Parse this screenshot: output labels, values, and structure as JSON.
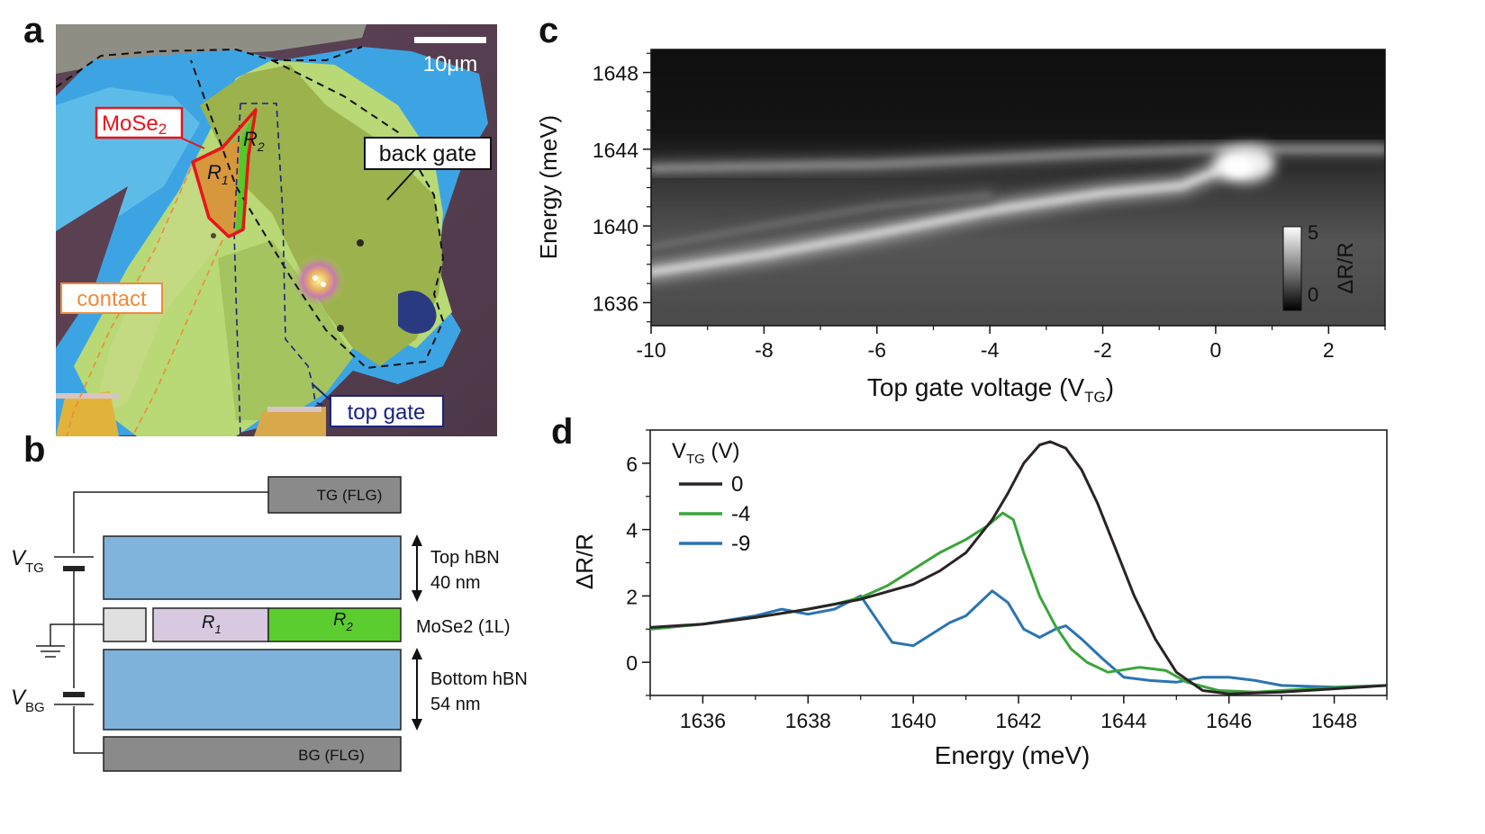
{
  "panels": {
    "a": "a",
    "b": "b",
    "c": "c",
    "d": "d"
  },
  "panel_a": {
    "scale_bar": "10μm",
    "labels": {
      "mose2": "MoSe",
      "mose2_sub": "2",
      "r1": "R",
      "r1_sub": "1",
      "r2": "R",
      "r2_sub": "2",
      "back_gate": "back gate",
      "contact": "contact",
      "top_gate": "top gate"
    }
  },
  "panel_b": {
    "tg_block": "TG (FLG)",
    "bg_block": "BG (FLG)",
    "vtg": "V",
    "vtg_sub": "TG",
    "vbg": "V",
    "vbg_sub": "BG",
    "r1": "R",
    "r1_sub": "1",
    "r2": "R",
    "r2_sub": "2",
    "top_hbn_line1": "Top hBN",
    "top_hbn_line2": "40 nm",
    "mose2_label": "MoSe2 (1L)",
    "bottom_hbn_line1": "Bottom hBN",
    "bottom_hbn_line2": "54 nm"
  },
  "chart_data": [
    {
      "type": "heatmap",
      "panel": "c",
      "title": "",
      "xlabel": "Top gate voltage (V",
      "xlabel_sub": "TG",
      "xlabel_end": ")",
      "ylabel": "Energy (meV)",
      "xlim": [
        -10,
        3
      ],
      "ylim": [
        1634.8,
        1649.2
      ],
      "xticks": [
        -10,
        -8,
        -6,
        -4,
        -2,
        0,
        2
      ],
      "yticks": [
        1636,
        1640,
        1644,
        1648
      ],
      "colorbar": {
        "label": "ΔR/R",
        "ticks": [
          0,
          5
        ],
        "range": [
          0,
          5
        ]
      },
      "features": [
        {
          "name": "main-exciton-branch",
          "points": [
            [
              -10,
              1637.6
            ],
            [
              -8,
              1638.5
            ],
            [
              -6,
              1639.6
            ],
            [
              -4,
              1640.8
            ],
            [
              -2,
              1641.7
            ],
            [
              -0.6,
              1642.1
            ],
            [
              0.3,
              1643.2
            ],
            [
              0.8,
              1643.7
            ]
          ]
        },
        {
          "name": "upper-branch",
          "points": [
            [
              -10,
              1643.0
            ],
            [
              -8,
              1643.1
            ],
            [
              -6,
              1643.2
            ],
            [
              -4,
              1643.5
            ],
            [
              -2,
              1643.8
            ],
            [
              0,
              1644.0
            ],
            [
              2,
              1644.0
            ],
            [
              3,
              1644.0
            ]
          ]
        },
        {
          "name": "lower-branch",
          "points": [
            [
              -10,
              1638.9
            ],
            [
              -8,
              1640.0
            ],
            [
              -6,
              1641.0
            ],
            [
              -4,
              1641.6
            ]
          ]
        }
      ]
    },
    {
      "type": "line",
      "panel": "d",
      "title": "",
      "xlabel": "Energy (meV)",
      "ylabel": "ΔR/R",
      "xlim": [
        1635,
        1649
      ],
      "ylim": [
        -1,
        7
      ],
      "xticks": [
        1636,
        1638,
        1640,
        1642,
        1644,
        1646,
        1648
      ],
      "yticks": [
        0,
        2,
        4,
        6
      ],
      "legend_title": "V",
      "legend_title_sub": "TG",
      "legend_title_end": " (V)",
      "legend_position": "top-left",
      "series": [
        {
          "name": "0",
          "color": "#2b2326",
          "x": [
            1635,
            1636,
            1637,
            1638,
            1639,
            1640,
            1640.5,
            1641,
            1641.5,
            1641.8,
            1642.1,
            1642.4,
            1642.6,
            1642.9,
            1643.2,
            1643.5,
            1643.8,
            1644.2,
            1644.6,
            1645,
            1645.5,
            1646,
            1647,
            1648,
            1649
          ],
          "y": [
            1.05,
            1.15,
            1.35,
            1.6,
            1.9,
            2.35,
            2.75,
            3.3,
            4.3,
            5.1,
            6.0,
            6.55,
            6.65,
            6.45,
            5.8,
            4.8,
            3.6,
            2.0,
            0.7,
            -0.3,
            -0.85,
            -0.95,
            -0.9,
            -0.8,
            -0.7
          ]
        },
        {
          "name": "-4",
          "color": "#3aa53a",
          "x": [
            1635,
            1636,
            1637,
            1637.8,
            1638.5,
            1639,
            1639.5,
            1640,
            1640.5,
            1641,
            1641.4,
            1641.7,
            1641.9,
            1642.1,
            1642.4,
            1642.7,
            1643,
            1643.3,
            1643.7,
            1644.3,
            1644.8,
            1645.2,
            1645.8,
            1646.5,
            1647.5,
            1649
          ],
          "y": [
            1.0,
            1.15,
            1.35,
            1.55,
            1.75,
            1.95,
            2.3,
            2.8,
            3.3,
            3.7,
            4.1,
            4.5,
            4.3,
            3.3,
            2.0,
            1.1,
            0.4,
            0.0,
            -0.3,
            -0.15,
            -0.25,
            -0.6,
            -0.85,
            -0.9,
            -0.8,
            -0.7
          ]
        },
        {
          "name": "-9",
          "color": "#2a74b3",
          "x": [
            1635,
            1636,
            1637,
            1637.5,
            1638,
            1638.5,
            1639,
            1639.3,
            1639.6,
            1640,
            1640.3,
            1640.7,
            1641,
            1641.3,
            1641.5,
            1641.8,
            1642.1,
            1642.4,
            1642.7,
            1642.9,
            1643.2,
            1643.6,
            1644,
            1644.5,
            1645,
            1645.5,
            1646,
            1646.5,
            1647,
            1648,
            1649
          ],
          "y": [
            1.0,
            1.15,
            1.4,
            1.6,
            1.45,
            1.6,
            2.0,
            1.3,
            0.6,
            0.5,
            0.8,
            1.2,
            1.4,
            1.85,
            2.15,
            1.8,
            1.0,
            0.75,
            1.0,
            1.1,
            0.7,
            0.1,
            -0.45,
            -0.55,
            -0.6,
            -0.45,
            -0.45,
            -0.55,
            -0.7,
            -0.75,
            -0.7
          ]
        }
      ]
    }
  ]
}
